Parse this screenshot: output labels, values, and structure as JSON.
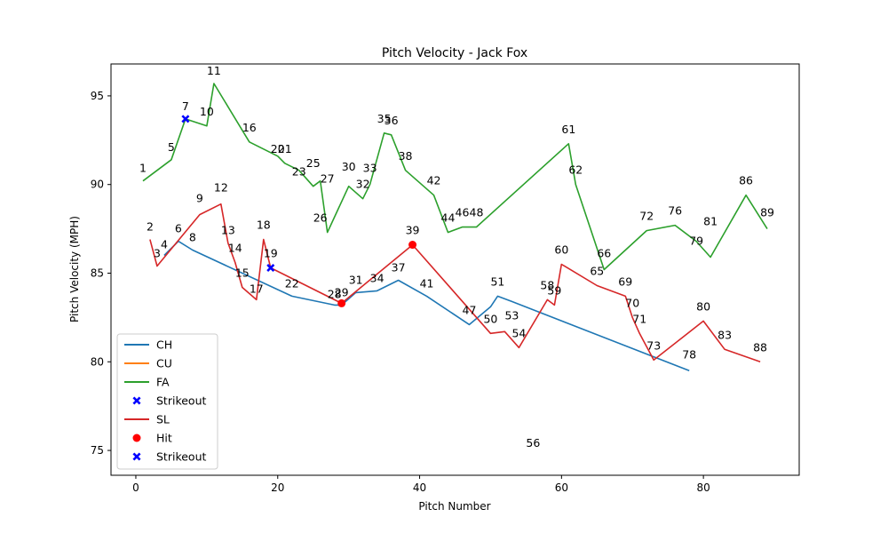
{
  "chart_data": {
    "type": "line",
    "title": "Pitch Velocity - Jack Fox",
    "xlabel": "Pitch Number",
    "ylabel": "Pitch Velocity (MPH)",
    "xlim": [
      -3.5,
      93.5
    ],
    "ylim": [
      73.6,
      96.8
    ],
    "xticks": [
      0,
      20,
      40,
      60,
      80
    ],
    "yticks": [
      75,
      80,
      85,
      90,
      95
    ],
    "grid": false,
    "legend_placement": "lower-left",
    "series": [
      {
        "name": "CH",
        "color": "#1f77b4",
        "x": [
          4,
          6,
          8,
          22,
          28,
          29,
          31,
          34,
          37,
          41,
          47,
          50,
          51,
          53,
          78
        ],
        "y": [
          86.0,
          86.8,
          86.3,
          83.7,
          83.2,
          83.2,
          83.9,
          84.0,
          84.6,
          83.7,
          82.1,
          83.1,
          83.7,
          83.4,
          79.5
        ]
      },
      {
        "name": "CU",
        "color": "#ff7f0e",
        "x": [],
        "y": []
      },
      {
        "name": "FA",
        "color": "#2ca02c",
        "x": [
          1,
          5,
          7,
          10,
          11,
          16,
          20,
          21,
          23,
          25,
          26,
          27,
          30,
          32,
          33,
          35,
          36,
          38,
          42,
          44,
          46,
          48,
          61,
          62,
          66,
          72,
          76,
          79,
          81,
          86,
          89
        ],
        "y": [
          90.2,
          91.4,
          93.7,
          93.3,
          95.7,
          92.4,
          91.6,
          91.2,
          90.8,
          89.9,
          90.2,
          87.3,
          89.9,
          89.2,
          90.0,
          92.9,
          92.8,
          90.8,
          89.4,
          87.3,
          87.6,
          87.6,
          92.3,
          90.0,
          85.2,
          87.4,
          87.7,
          86.8,
          85.9,
          89.4,
          87.5
        ]
      },
      {
        "name": "SL",
        "color": "#d62728",
        "x": [
          2,
          3,
          9,
          12,
          13,
          14,
          15,
          17,
          18,
          19,
          29,
          39,
          50,
          52,
          54,
          58,
          59,
          60,
          65,
          69,
          70,
          71,
          73,
          80,
          83,
          88
        ],
        "y": [
          86.9,
          85.4,
          88.3,
          88.9,
          86.7,
          85.6,
          84.2,
          83.5,
          86.9,
          85.3,
          83.3,
          86.6,
          81.6,
          81.7,
          80.8,
          83.5,
          83.2,
          85.5,
          84.3,
          83.7,
          82.5,
          81.6,
          80.1,
          82.3,
          80.7,
          80.0
        ]
      }
    ],
    "markers": [
      {
        "name": "Strikeout",
        "shape": "x",
        "color": "#0000ff",
        "x": [
          7
        ],
        "y": [
          93.7
        ]
      },
      {
        "name": "Hit",
        "shape": "circle",
        "color": "#ff0000",
        "x": [
          29,
          39
        ],
        "y": [
          83.3,
          86.6
        ]
      },
      {
        "name": "Strikeout",
        "shape": "x",
        "color": "#0000ff",
        "x": [
          19
        ],
        "y": [
          85.3
        ]
      }
    ],
    "legend_order": [
      "CH",
      "CU",
      "FA",
      "Strikeout",
      "SL",
      "Hit",
      "Strikeout"
    ],
    "pitch_labels": [
      {
        "text": "1",
        "x": 1,
        "y": 90.9
      },
      {
        "text": "2",
        "x": 2,
        "y": 87.6
      },
      {
        "text": "3",
        "x": 3,
        "y": 86.1
      },
      {
        "text": "4",
        "x": 4,
        "y": 86.6
      },
      {
        "text": "5",
        "x": 5,
        "y": 92.1
      },
      {
        "text": "6",
        "x": 6,
        "y": 87.5
      },
      {
        "text": "7",
        "x": 7,
        "y": 94.4
      },
      {
        "text": "8",
        "x": 8,
        "y": 87.0
      },
      {
        "text": "9",
        "x": 9,
        "y": 89.2
      },
      {
        "text": "10",
        "x": 10,
        "y": 94.1
      },
      {
        "text": "11",
        "x": 11,
        "y": 96.4
      },
      {
        "text": "12",
        "x": 12,
        "y": 89.8
      },
      {
        "text": "13",
        "x": 13,
        "y": 87.4
      },
      {
        "text": "14",
        "x": 14,
        "y": 86.4
      },
      {
        "text": "15",
        "x": 15,
        "y": 85.0
      },
      {
        "text": "16",
        "x": 16,
        "y": 93.2
      },
      {
        "text": "17",
        "x": 17,
        "y": 84.1
      },
      {
        "text": "18",
        "x": 18,
        "y": 87.7
      },
      {
        "text": "19",
        "x": 19,
        "y": 86.1
      },
      {
        "text": "20",
        "x": 20,
        "y": 92.0
      },
      {
        "text": "21",
        "x": 21,
        "y": 92.0
      },
      {
        "text": "22",
        "x": 22,
        "y": 84.4
      },
      {
        "text": "23",
        "x": 23,
        "y": 90.7
      },
      {
        "text": "25",
        "x": 25,
        "y": 91.2
      },
      {
        "text": "26",
        "x": 26,
        "y": 88.1
      },
      {
        "text": "27",
        "x": 27,
        "y": 90.3
      },
      {
        "text": "28",
        "x": 28,
        "y": 83.8
      },
      {
        "text": "29",
        "x": 29,
        "y": 83.9
      },
      {
        "text": "30",
        "x": 30,
        "y": 91.0
      },
      {
        "text": "31",
        "x": 31,
        "y": 84.6
      },
      {
        "text": "32",
        "x": 32,
        "y": 90.0
      },
      {
        "text": "33",
        "x": 33,
        "y": 90.9
      },
      {
        "text": "34",
        "x": 34,
        "y": 84.7
      },
      {
        "text": "35",
        "x": 35,
        "y": 93.7
      },
      {
        "text": "36",
        "x": 36,
        "y": 93.6
      },
      {
        "text": "37",
        "x": 37,
        "y": 85.3
      },
      {
        "text": "38",
        "x": 38,
        "y": 91.6
      },
      {
        "text": "39",
        "x": 39,
        "y": 87.4
      },
      {
        "text": "41",
        "x": 41,
        "y": 84.4
      },
      {
        "text": "42",
        "x": 42,
        "y": 90.2
      },
      {
        "text": "44",
        "x": 44,
        "y": 88.1
      },
      {
        "text": "46",
        "x": 46,
        "y": 88.4
      },
      {
        "text": "47",
        "x": 47,
        "y": 82.9
      },
      {
        "text": "48",
        "x": 48,
        "y": 88.4
      },
      {
        "text": "50",
        "x": 50,
        "y": 82.4
      },
      {
        "text": "51",
        "x": 51,
        "y": 84.5
      },
      {
        "text": "53",
        "x": 53,
        "y": 82.6
      },
      {
        "text": "54",
        "x": 54,
        "y": 81.6
      },
      {
        "text": "56",
        "x": 56,
        "y": 75.4
      },
      {
        "text": "58",
        "x": 58,
        "y": 84.3
      },
      {
        "text": "59",
        "x": 59,
        "y": 84.0
      },
      {
        "text": "60",
        "x": 60,
        "y": 86.3
      },
      {
        "text": "61",
        "x": 61,
        "y": 93.1
      },
      {
        "text": "62",
        "x": 62,
        "y": 90.8
      },
      {
        "text": "65",
        "x": 65,
        "y": 85.1
      },
      {
        "text": "66",
        "x": 66,
        "y": 86.1
      },
      {
        "text": "69",
        "x": 69,
        "y": 84.5
      },
      {
        "text": "70",
        "x": 70,
        "y": 83.3
      },
      {
        "text": "71",
        "x": 71,
        "y": 82.4
      },
      {
        "text": "72",
        "x": 72,
        "y": 88.2
      },
      {
        "text": "73",
        "x": 73,
        "y": 80.9
      },
      {
        "text": "76",
        "x": 76,
        "y": 88.5
      },
      {
        "text": "78",
        "x": 78,
        "y": 80.4
      },
      {
        "text": "79",
        "x": 79,
        "y": 86.8
      },
      {
        "text": "80",
        "x": 80,
        "y": 83.1
      },
      {
        "text": "81",
        "x": 81,
        "y": 87.9
      },
      {
        "text": "83",
        "x": 83,
        "y": 81.5
      },
      {
        "text": "86",
        "x": 86,
        "y": 90.2
      },
      {
        "text": "88",
        "x": 88,
        "y": 80.8
      },
      {
        "text": "89",
        "x": 89,
        "y": 88.4
      }
    ]
  }
}
